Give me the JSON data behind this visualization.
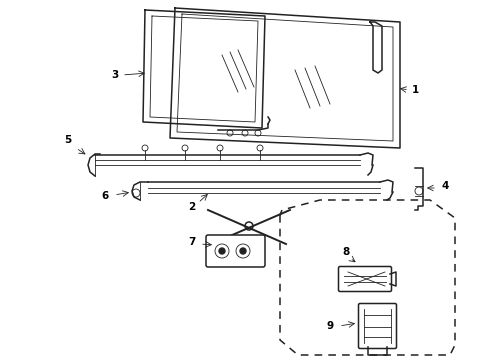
{
  "bg_color": "#ffffff",
  "line_color": "#222222",
  "label_color": "#000000",
  "lw_main": 1.1,
  "lw_thin": 0.6,
  "lw_label": 0.5
}
